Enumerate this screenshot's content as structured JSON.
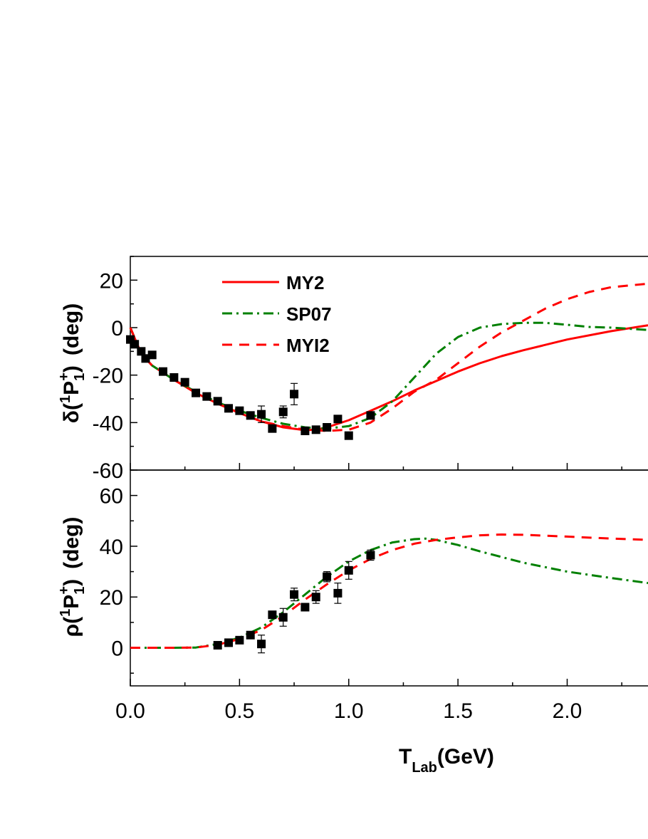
{
  "chart_data": [
    {
      "type": "line",
      "panel": "top",
      "ylabel": "δ(1P1+) (deg)",
      "ylabel_parts": {
        "prefix": "δ(",
        "sup1": "1",
        "main": "P",
        "sub": "1",
        "sup2": "+",
        "suffix": ")",
        "unit": "(deg)"
      },
      "xlim": [
        0,
        2.37
      ],
      "ylim": [
        -60,
        30
      ],
      "yticks": [
        20,
        0,
        -20,
        -40,
        -60
      ],
      "ytick_labels": [
        "20",
        "0",
        "-20",
        "-40",
        "-60"
      ],
      "legend": {
        "placement": "top-left"
      },
      "series": [
        {
          "name": "MY2",
          "style": "solid",
          "color": "#ff0000",
          "x": [
            0,
            0.05,
            0.1,
            0.2,
            0.3,
            0.4,
            0.5,
            0.6,
            0.7,
            0.8,
            0.85,
            0.9,
            1.0,
            1.1,
            1.2,
            1.3,
            1.4,
            1.5,
            1.6,
            1.7,
            1.8,
            2.0,
            2.2,
            2.37
          ],
          "y": [
            0,
            -11,
            -16,
            -22,
            -27.5,
            -32,
            -36,
            -39.5,
            -42,
            -43.2,
            -43,
            -42,
            -39,
            -35,
            -31,
            -26.5,
            -22.5,
            -18.5,
            -15,
            -12,
            -9.5,
            -5,
            -1.5,
            1
          ]
        },
        {
          "name": "SP07",
          "style": "dashdot",
          "color": "#008000",
          "x": [
            0,
            0.05,
            0.1,
            0.2,
            0.3,
            0.4,
            0.5,
            0.6,
            0.7,
            0.8,
            0.9,
            1.0,
            1.1,
            1.2,
            1.3,
            1.4,
            1.5,
            1.6,
            1.7,
            1.8,
            1.9,
            2.0,
            2.1,
            2.2,
            2.37
          ],
          "y": [
            0,
            -11,
            -16,
            -22,
            -27,
            -31.5,
            -35,
            -38,
            -40.5,
            -42,
            -42.5,
            -41.5,
            -38,
            -31,
            -21,
            -11,
            -4,
            0,
            1.5,
            2,
            2,
            1.2,
            0.3,
            0,
            -1
          ]
        },
        {
          "name": "MYI2",
          "style": "dashed",
          "color": "#ff0000",
          "x": [
            0,
            0.05,
            0.1,
            0.2,
            0.3,
            0.4,
            0.5,
            0.6,
            0.7,
            0.8,
            0.9,
            1.0,
            1.1,
            1.2,
            1.3,
            1.4,
            1.5,
            1.6,
            1.7,
            1.8,
            1.9,
            2.0,
            2.1,
            2.2,
            2.37
          ],
          "y": [
            0,
            -11,
            -16,
            -22,
            -27.5,
            -32,
            -36,
            -39.5,
            -41.5,
            -43,
            -43.5,
            -43,
            -40,
            -34,
            -27,
            -22,
            -15,
            -8,
            -2,
            3,
            8,
            12,
            15,
            17,
            18.5
          ]
        }
      ],
      "points": {
        "marker": "square",
        "x": [
          0.0,
          0.02,
          0.05,
          0.07,
          0.1,
          0.15,
          0.2,
          0.25,
          0.3,
          0.35,
          0.4,
          0.45,
          0.5,
          0.55,
          0.6,
          0.65,
          0.7,
          0.75,
          0.8,
          0.85,
          0.9,
          0.95,
          1.0,
          1.1
        ],
        "y": [
          -5,
          -7,
          -10,
          -13,
          -11.5,
          -18.5,
          -21,
          -23,
          -27.5,
          -29,
          -31,
          -34,
          -35,
          -37,
          -36.5,
          -42.5,
          -35.5,
          -28,
          -43.5,
          -43,
          -42,
          -38.5,
          -45.5,
          -37
        ],
        "err": [
          0.8,
          0.8,
          0.8,
          0.8,
          0.8,
          0.8,
          0.8,
          0.8,
          0.8,
          0.8,
          0.8,
          0.8,
          0.8,
          0.8,
          3.5,
          0.8,
          2.5,
          4.5,
          0.8,
          0.8,
          0.8,
          0.8,
          0.8,
          0.8
        ]
      }
    },
    {
      "type": "line",
      "panel": "bottom",
      "ylabel": "ρ(1P1+) (deg)",
      "ylabel_parts": {
        "prefix": "ρ(",
        "sup1": "1",
        "main": "P",
        "sub": "1",
        "sup2": "+",
        "suffix": ")",
        "unit": "(deg)"
      },
      "xlabel": "TLab(GeV)",
      "xlabel_parts": {
        "main": "T",
        "sub": "Lab",
        "suffix": "(GeV)"
      },
      "xlim": [
        0,
        2.37
      ],
      "xticks": [
        0.0,
        0.5,
        1.0,
        1.5,
        2.0
      ],
      "xtick_labels": [
        "0.0",
        "0.5",
        "1.0",
        "1.5",
        "2.0"
      ],
      "ylim": [
        -15,
        70
      ],
      "yticks": [
        60,
        40,
        20,
        0
      ],
      "ytick_labels": [
        "60",
        "40",
        "20",
        "0"
      ],
      "series": [
        {
          "name": "SP07",
          "style": "dashdot",
          "color": "#008000",
          "x": [
            0,
            0.2,
            0.3,
            0.4,
            0.5,
            0.6,
            0.7,
            0.8,
            0.9,
            1.0,
            1.1,
            1.2,
            1.3,
            1.35,
            1.4,
            1.5,
            1.6,
            1.8,
            2.0,
            2.2,
            2.37
          ],
          "y": [
            0,
            0,
            0.1,
            1.5,
            4,
            8,
            14,
            21,
            28,
            34,
            38.5,
            41.5,
            42.8,
            43,
            42.5,
            40.5,
            38,
            33.5,
            30,
            27.5,
            25.5
          ]
        },
        {
          "name": "MYI2",
          "style": "dashed",
          "color": "#ff0000",
          "x": [
            0,
            0.2,
            0.3,
            0.4,
            0.5,
            0.6,
            0.7,
            0.8,
            0.9,
            1.0,
            1.1,
            1.2,
            1.3,
            1.4,
            1.5,
            1.6,
            1.7,
            1.8,
            2.0,
            2.2,
            2.37
          ],
          "y": [
            0,
            0,
            0.1,
            1.2,
            3.5,
            7,
            12.5,
            19,
            25,
            30.5,
            35,
            38.5,
            41,
            42.5,
            43.5,
            44.3,
            44.6,
            44.5,
            43.8,
            43,
            42.5
          ]
        }
      ],
      "points": {
        "marker": "square",
        "x": [
          0.4,
          0.45,
          0.5,
          0.55,
          0.6,
          0.65,
          0.7,
          0.75,
          0.8,
          0.85,
          0.9,
          0.95,
          1.0,
          1.1
        ],
        "y": [
          1,
          2,
          3,
          5,
          1.5,
          13,
          12,
          21,
          16,
          20,
          28,
          21.5,
          30.5,
          36.5
        ],
        "err": [
          0.8,
          0.8,
          0.8,
          0.8,
          3.5,
          0.8,
          3.5,
          2.5,
          0.8,
          2.5,
          2,
          4,
          3.5,
          2
        ]
      }
    }
  ]
}
